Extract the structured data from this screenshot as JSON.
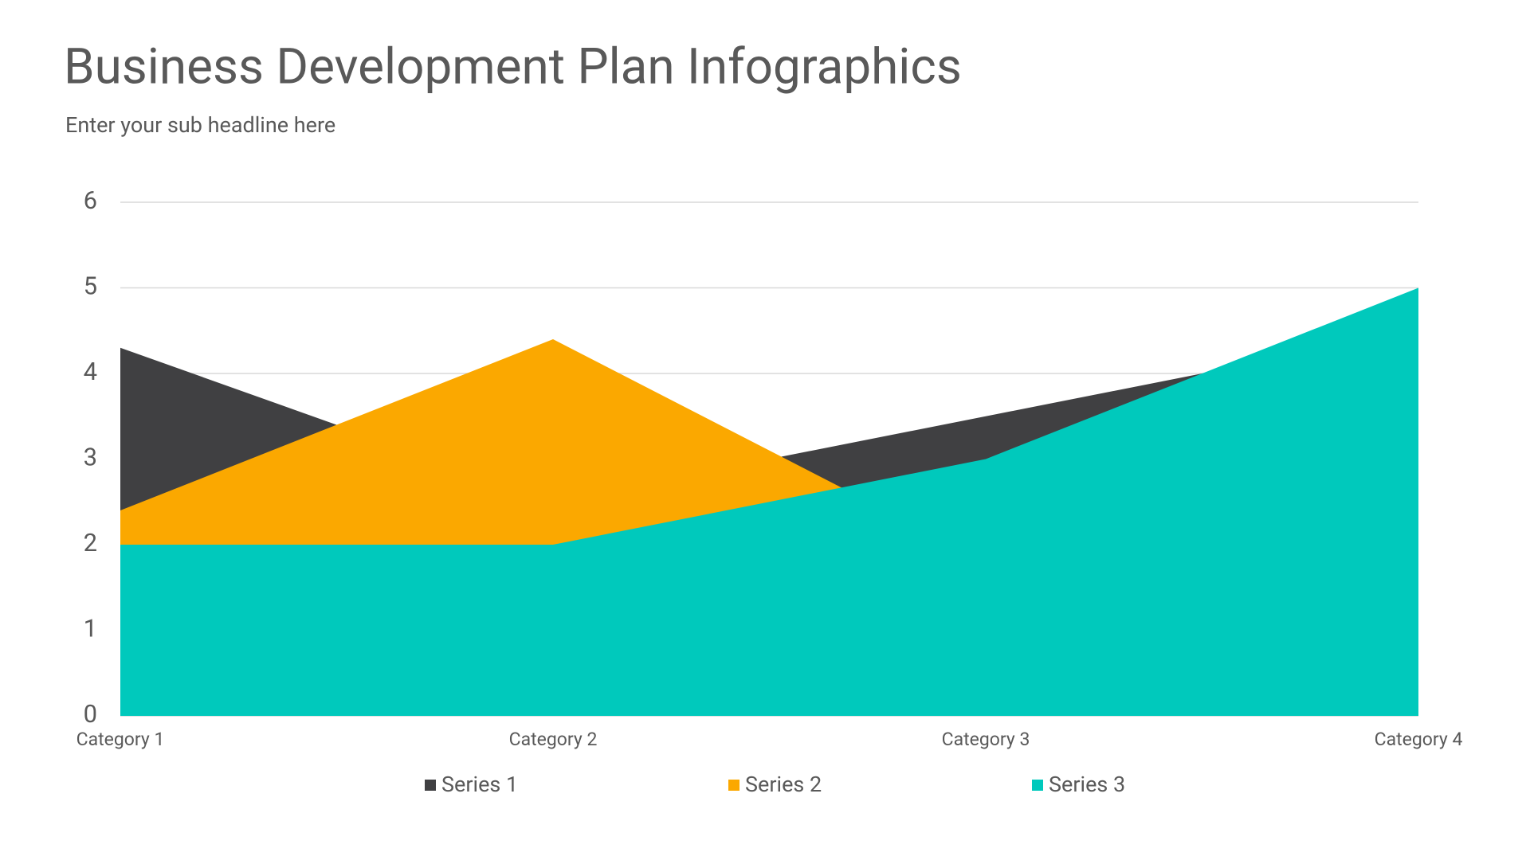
{
  "title": "Business Development Plan Infographics",
  "subtitle": "Enter your sub headline here",
  "chart_data": {
    "type": "area",
    "categories": [
      "Category 1",
      "Category 2",
      "Category 3",
      "Category 4"
    ],
    "series": [
      {
        "name": "Series 1",
        "color": "#404042",
        "values": [
          4.3,
          2.5,
          3.5,
          4.5
        ]
      },
      {
        "name": "Series 2",
        "color": "#fba800",
        "values": [
          2.4,
          4.4,
          1.8,
          2.8
        ]
      },
      {
        "name": "Series 3",
        "color": "#00c9bc",
        "values": [
          2,
          2,
          3,
          5
        ]
      }
    ],
    "ylim": [
      0,
      6
    ],
    "yticks": [
      0,
      1,
      2,
      3,
      4,
      5,
      6
    ],
    "grid": true,
    "legend": "bottom"
  }
}
